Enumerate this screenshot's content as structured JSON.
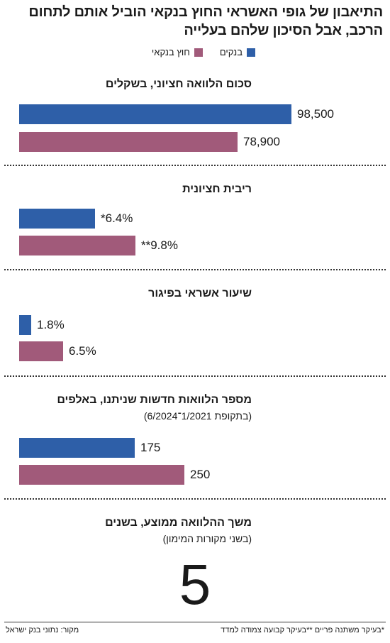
{
  "title": "התיאבון של גופי האשראי החוץ בנקאי הוביל אותם לתחום הרכב, אבל הסיכון שלהם בעלייה",
  "legend": [
    {
      "label": "בנקים",
      "color": "#2e5fa8"
    },
    {
      "label": "חוץ בנקאי",
      "color": "#a15a7a"
    }
  ],
  "colors": {
    "banks": "#2e5fa8",
    "nonbank": "#a15a7a"
  },
  "chart_data": [
    {
      "type": "bar",
      "title": "סכום הלוואה חציוני, בשקלים",
      "series": [
        {
          "name": "בנקים",
          "values": [
            98500
          ],
          "label": "98,500"
        },
        {
          "name": "חוץ בנקאי",
          "values": [
            78900
          ],
          "label": "78,900"
        }
      ],
      "xlim": [
        0,
        98500
      ]
    },
    {
      "type": "bar",
      "title": "ריבית חציונית",
      "series": [
        {
          "name": "בנקים",
          "values": [
            6.4
          ],
          "label": "*6.4%"
        },
        {
          "name": "חוץ בנקאי",
          "values": [
            9.8
          ],
          "label": "**9.8%"
        }
      ],
      "xlim": [
        0,
        23
      ]
    },
    {
      "type": "bar",
      "title": "שיעור אשראי בפיגור",
      "series": [
        {
          "name": "בנקים",
          "values": [
            1.8
          ],
          "label": "1.8%"
        },
        {
          "name": "חוץ בנקאי",
          "values": [
            6.5
          ],
          "label": "6.5%"
        }
      ],
      "xlim": [
        0,
        40
      ]
    },
    {
      "type": "bar",
      "title": "מספר הלוואות חדשות שניתנו, באלפים",
      "subtitle": "(בתקופת 1/2021־6/2024)",
      "series": [
        {
          "name": "בנקים",
          "values": [
            175
          ],
          "label": "175"
        },
        {
          "name": "חוץ בנקאי",
          "values": [
            250
          ],
          "label": "250"
        }
      ],
      "xlim": [
        0,
        412
      ]
    }
  ],
  "duration": {
    "title": "משך ההלוואה ממוצע, בשנים",
    "subtitle": "(בשני מקורות המימון)",
    "value": "5"
  },
  "footnote": "*בעיקר משתנה פריים **בעיקר קבועה צמודה למדד",
  "source": "מקור: נתוני בנק ישראל"
}
